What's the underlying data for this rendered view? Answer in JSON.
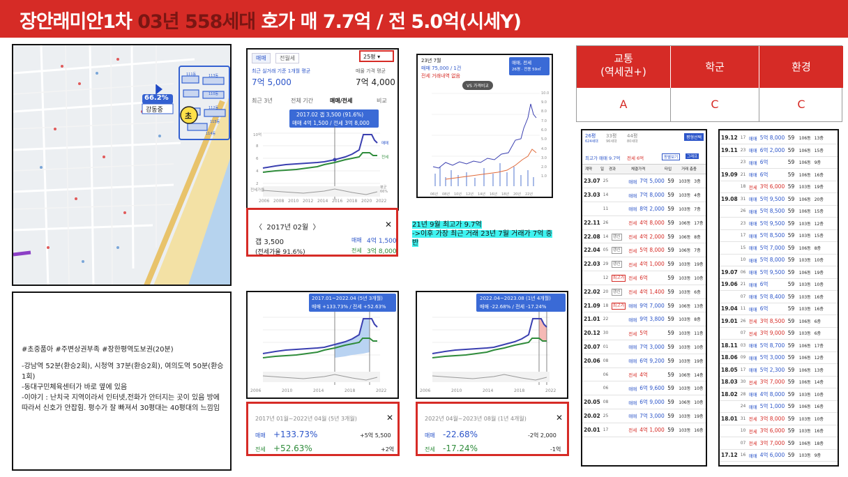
{
  "header": {
    "title_prefix": "장안래미안1차 ",
    "title_highlight": "03년 558세대",
    "title_suffix": " 호가 매 7.7억 / 전 5.0억(시세Y)"
  },
  "map": {
    "percent_badge": "66.2%",
    "status_badge": "강동중",
    "school_marker": "초",
    "building_labels": [
      "110동",
      "112동",
      "111동",
      "113동",
      "115동",
      "114동"
    ]
  },
  "comment": {
    "hashtags": "#초중품아 #주변상권부족 #장한평역도보권(20분)",
    "line1": "-강남역 52분(환승2회), 시청역 37분(환승2회), 여의도역 50분(환승1회)",
    "line2": "-동대구민체육센터가 바로 옆에 있음",
    "line3": "-이야기 : 난치국 지역이라서 인터넷,전화가 안터지는 곳이 있음 방에 따라서 신호가 안잡힘. 평수가 잘 빠져서 30평대는 40평대의 느낌임"
  },
  "price_panel": {
    "tab_sale": "매매",
    "tab_lease": "전월세",
    "size_select": "25평",
    "recent_label": "최근 실거래 기준 1개월 평균",
    "recent_value": "7억 5,000",
    "ask_label": "매물 가격 평균",
    "ask_value": "7억 4,000",
    "period_tabs": [
      "최근 3년",
      "전체 기간",
      "매매/전세",
      "비교"
    ],
    "tooltip_line1": "2017.02  갭 3,500 (91.6%)",
    "tooltip_line2": "매매 4억 1,500 / 전세 3억 8,000",
    "legend_sale": "매매",
    "legend_lease": "전세",
    "lease_ratio_label": "전세가율",
    "ratio_right_label": "평균 66%",
    "x_labels": [
      "2006",
      "2008",
      "2010",
      "2012",
      "2014",
      "2016",
      "2018",
      "2020",
      "2022"
    ],
    "y_labels": [
      "10억",
      "8",
      "6",
      "4",
      "2"
    ]
  },
  "detail_box1": {
    "month": "2017년 02월",
    "gap_label": "갭 3,500",
    "sale_label": "매매",
    "sale_value": "4억 1,500",
    "lease_label": "전세",
    "lease_value": "3억 8,000",
    "ratio": "(전세가율 91.6%)"
  },
  "mini_chart": {
    "title": "23년 7월",
    "sale_info": "매매 75,000 / 1건",
    "lease_info": "전세 거래내역 없음",
    "compare_button": "VS 가격비교",
    "select_line1": "매매, 전세",
    "select_line2": "26평 · 전용 59㎡",
    "y_labels": [
      "10.0",
      "9.0",
      "8.0",
      "7.0",
      "6.0",
      "5.0",
      "4.0",
      "3.0",
      "2.0",
      "1.0"
    ],
    "x_labels": [
      "06년",
      "08년",
      "10년",
      "12년",
      "14년",
      "16년",
      "18년",
      "20년",
      "22년"
    ]
  },
  "note": {
    "line1": "21년 9월 최고가 9.7억",
    "line2": "->이후 가장 최근 거래 23년 7월 거래가 7억 중반"
  },
  "grades": {
    "headers": [
      "교통\n(역세권+)",
      "학군",
      "환경"
    ],
    "values": [
      "A",
      "C",
      "C"
    ]
  },
  "trade_list": {
    "size_tabs": [
      "26평",
      "33평",
      "44평"
    ],
    "unit_tabs": [
      "624세대",
      "96세대",
      "80세대"
    ],
    "small_button": "평형선택",
    "summary_max": "최고가 매매 9.7억",
    "summary_lease": "전세 6억",
    "btn1": "동별보기",
    "btn2": "그래프",
    "headers": [
      "계약",
      "일",
      "경과",
      "체결가격",
      "타입",
      "거래 층충"
    ],
    "rows": [
      {
        "ym": "23.07",
        "d": "25",
        "tag": "",
        "kind": "매매",
        "price": "7억 5,000",
        "type": "59",
        "dong": "103동",
        "floor": "3층"
      },
      {
        "ym": "23.03",
        "d": "14",
        "tag": "",
        "kind": "매매",
        "price": "7억 8,000",
        "type": "59",
        "dong": "103동",
        "floor": "4층"
      },
      {
        "ym": "",
        "d": "11",
        "tag": "",
        "kind": "매매",
        "price": "8억 2,000",
        "type": "59",
        "dong": "103동",
        "floor": "7층"
      },
      {
        "ym": "22.11",
        "d": "26",
        "tag": "",
        "kind": "전세",
        "price": "4억 8,000",
        "type": "59",
        "dong": "106동",
        "floor": "17층"
      },
      {
        "ym": "22.08",
        "d": "14",
        "tag": "갱신",
        "kind": "전세",
        "price": "4억 2,000",
        "type": "59",
        "dong": "106동",
        "floor": "8층"
      },
      {
        "ym": "22.04",
        "d": "05",
        "tag": "갱신",
        "kind": "전세",
        "price": "5억 8,000",
        "type": "59",
        "dong": "106동",
        "floor": "7층"
      },
      {
        "ym": "22.03",
        "d": "29",
        "tag": "갱신",
        "kind": "전세",
        "price": "4억 1,000",
        "type": "59",
        "dong": "103동",
        "floor": "19층"
      },
      {
        "ym": "",
        "d": "12",
        "tag": "최고가",
        "kind": "전세",
        "price": "6억",
        "type": "59",
        "dong": "103동",
        "floor": "10층"
      },
      {
        "ym": "22.02",
        "d": "20",
        "tag": "갱신",
        "kind": "전세",
        "price": "4억 1,400",
        "type": "59",
        "dong": "103동",
        "floor": "6층"
      },
      {
        "ym": "21.09",
        "d": "18",
        "tag": "최고가",
        "kind": "매매",
        "price": "9억 7,000",
        "type": "59",
        "dong": "106동",
        "floor": "13층"
      },
      {
        "ym": "21.01",
        "d": "22",
        "tag": "",
        "kind": "매매",
        "price": "9억 3,800",
        "type": "59",
        "dong": "103동",
        "floor": "8층"
      },
      {
        "ym": "20.12",
        "d": "30",
        "tag": "",
        "kind": "전세",
        "price": "5억",
        "type": "59",
        "dong": "103동",
        "floor": "11층"
      },
      {
        "ym": "20.07",
        "d": "01",
        "tag": "",
        "kind": "매매",
        "price": "7억 3,000",
        "type": "59",
        "dong": "103동",
        "floor": "10층"
      },
      {
        "ym": "20.06",
        "d": "08",
        "tag": "",
        "kind": "매매",
        "price": "6억 9,200",
        "type": "59",
        "dong": "103동",
        "floor": "19층"
      },
      {
        "ym": "",
        "d": "06",
        "tag": "",
        "kind": "전세",
        "price": "4억",
        "type": "59",
        "dong": "106동",
        "floor": "14층"
      },
      {
        "ym": "",
        "d": "06",
        "tag": "",
        "kind": "매매",
        "price": "6억 9,600",
        "type": "59",
        "dong": "103동",
        "floor": "10층"
      },
      {
        "ym": "20.05",
        "d": "08",
        "tag": "",
        "kind": "매매",
        "price": "6억 9,000",
        "type": "59",
        "dong": "106동",
        "floor": "10층"
      },
      {
        "ym": "20.02",
        "d": "25",
        "tag": "",
        "kind": "매매",
        "price": "7억 3,000",
        "type": "59",
        "dong": "103동",
        "floor": "19층"
      },
      {
        "ym": "20.01",
        "d": "17",
        "tag": "",
        "kind": "전세",
        "price": "4억 1,000",
        "type": "59",
        "dong": "103동",
        "floor": "16층"
      }
    ]
  },
  "trade_list2": {
    "rows": [
      {
        "ym": "19.12",
        "d": "17",
        "kind": "매매",
        "price": "5억 8,000",
        "type": "59",
        "dong": "106동",
        "floor": "13층"
      },
      {
        "ym": "19.11",
        "d": "23",
        "kind": "매매",
        "price": "6억 2,000",
        "type": "59",
        "dong": "106동",
        "floor": "15층"
      },
      {
        "ym": "",
        "d": "23",
        "kind": "매매",
        "price": "6억",
        "type": "59",
        "dong": "106동",
        "floor": "9층"
      },
      {
        "ym": "19.09",
        "d": "21",
        "kind": "매매",
        "price": "6억",
        "type": "59",
        "dong": "106동",
        "floor": "16층"
      },
      {
        "ym": "",
        "d": "18",
        "kind": "전세",
        "price": "3억 6,000",
        "type": "59",
        "dong": "103동",
        "floor": "19층"
      },
      {
        "ym": "19.08",
        "d": "31",
        "kind": "매매",
        "price": "5억 9,500",
        "type": "59",
        "dong": "106동",
        "floor": "20층"
      },
      {
        "ym": "",
        "d": "26",
        "kind": "매매",
        "price": "5억 8,500",
        "type": "59",
        "dong": "106동",
        "floor": "15층"
      },
      {
        "ym": "",
        "d": "23",
        "kind": "매매",
        "price": "5억 9,500",
        "type": "59",
        "dong": "103동",
        "floor": "12층"
      },
      {
        "ym": "",
        "d": "17",
        "kind": "매매",
        "price": "5억 8,500",
        "type": "59",
        "dong": "103동",
        "floor": "15층"
      },
      {
        "ym": "",
        "d": "15",
        "kind": "매매",
        "price": "5억 7,000",
        "type": "59",
        "dong": "106동",
        "floor": "8층"
      },
      {
        "ym": "",
        "d": "10",
        "kind": "매매",
        "price": "5억 8,000",
        "type": "59",
        "dong": "103동",
        "floor": "10층"
      },
      {
        "ym": "19.07",
        "d": "06",
        "kind": "매매",
        "price": "5억 9,500",
        "type": "59",
        "dong": "106동",
        "floor": "19층"
      },
      {
        "ym": "19.06",
        "d": "21",
        "kind": "매매",
        "price": "6억",
        "type": "59",
        "dong": "103동",
        "floor": "10층"
      },
      {
        "ym": "",
        "d": "07",
        "kind": "매매",
        "price": "5억 8,400",
        "type": "59",
        "dong": "103동",
        "floor": "16층"
      },
      {
        "ym": "19.04",
        "d": "11",
        "kind": "매매",
        "price": "6억",
        "type": "59",
        "dong": "103동",
        "floor": "16층"
      },
      {
        "ym": "19.01",
        "d": "26",
        "kind": "전세",
        "price": "3억 8,500",
        "type": "59",
        "dong": "106동",
        "floor": "6층"
      },
      {
        "ym": "",
        "d": "07",
        "kind": "전세",
        "price": "3억 9,000",
        "type": "59",
        "dong": "103동",
        "floor": "6층"
      },
      {
        "ym": "18.11",
        "d": "03",
        "kind": "매매",
        "price": "5억 8,700",
        "type": "59",
        "dong": "106동",
        "floor": "17층"
      },
      {
        "ym": "18.06",
        "d": "09",
        "kind": "매매",
        "price": "5억 3,000",
        "type": "59",
        "dong": "106동",
        "floor": "12층"
      },
      {
        "ym": "18.05",
        "d": "17",
        "kind": "매매",
        "price": "5억 2,300",
        "type": "59",
        "dong": "106동",
        "floor": "13층"
      },
      {
        "ym": "18.03",
        "d": "30",
        "kind": "전세",
        "price": "3억 7,000",
        "type": "59",
        "dong": "106동",
        "floor": "14층"
      },
      {
        "ym": "18.02",
        "d": "28",
        "kind": "매매",
        "price": "4억 8,000",
        "type": "59",
        "dong": "103동",
        "floor": "10층"
      },
      {
        "ym": "",
        "d": "24",
        "kind": "매매",
        "price": "5억 1,000",
        "type": "59",
        "dong": "106동",
        "floor": "16층"
      },
      {
        "ym": "18.01",
        "d": "31",
        "kind": "전세",
        "price": "3억 8,000",
        "type": "59",
        "dong": "103동",
        "floor": "10층"
      },
      {
        "ym": "",
        "d": "10",
        "kind": "전세",
        "price": "3억 6,000",
        "type": "59",
        "dong": "103동",
        "floor": "16층"
      },
      {
        "ym": "",
        "d": "07",
        "kind": "전세",
        "price": "3억 7,000",
        "type": "59",
        "dong": "106동",
        "floor": "18층"
      },
      {
        "ym": "17.12",
        "d": "16",
        "kind": "매매",
        "price": "4억 6,000",
        "type": "59",
        "dong": "103동",
        "floor": "9층"
      }
    ]
  },
  "period_chart1": {
    "tooltip_line1": "2017.01~2022.04 (5년 3개월)",
    "tooltip_line2": "매매 +133.73%  /  전세 +52.63%"
  },
  "period_box1": {
    "range": "2017년 01월~2022년 04월 (5년 3개월)",
    "sale_label": "매매",
    "sale_pct": "+133.73%",
    "sale_amt": "+5억 5,500",
    "lease_label": "전세",
    "lease_pct": "+52.63%",
    "lease_amt": "+2억"
  },
  "period_chart2": {
    "tooltip_line1": "2022.04~2023.08 (1년 4개월)",
    "tooltip_line2": "매매 -22.68%  /  전세 -17.24%"
  },
  "period_box2": {
    "range": "2022년 04월~2023년 08월 (1년 4개월)",
    "sale_label": "매매",
    "sale_pct": "-22.68%",
    "sale_amt": "-2억 2,000",
    "lease_label": "전세",
    "lease_pct": "-17.24%",
    "lease_amt": "-1억"
  },
  "colors": {
    "header_red": "#d62b26",
    "sale_blue": "#3a3fb0",
    "lease_green": "#2e8b3a",
    "highlight_cyan": "#3ff3f0"
  }
}
